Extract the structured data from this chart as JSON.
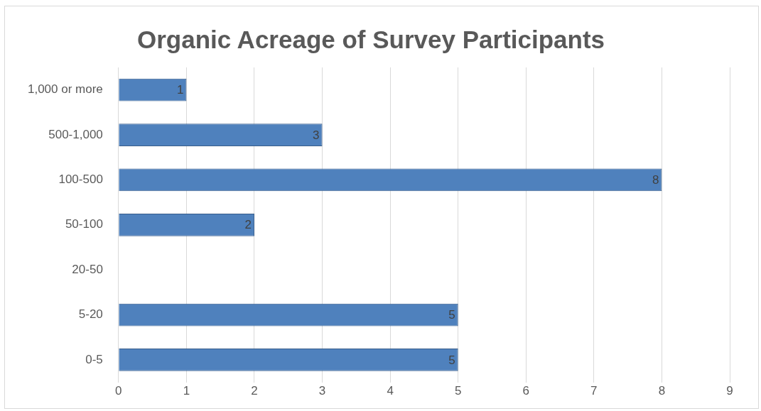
{
  "chart_data": {
    "type": "bar",
    "orientation": "horizontal",
    "title": "Organic Acreage of Survey Participants",
    "categories": [
      "1,000 or more",
      "500-1,000",
      "100-500",
      "50-100",
      "20-50",
      "5-20",
      "0-5"
    ],
    "values": [
      1,
      3,
      8,
      2,
      null,
      5,
      5
    ],
    "color": "#4f81bd",
    "xlim": [
      0,
      9
    ],
    "xticks": [
      0,
      1,
      2,
      3,
      4,
      5,
      6,
      7,
      8,
      9
    ],
    "grid": "x",
    "data_labels": true
  }
}
